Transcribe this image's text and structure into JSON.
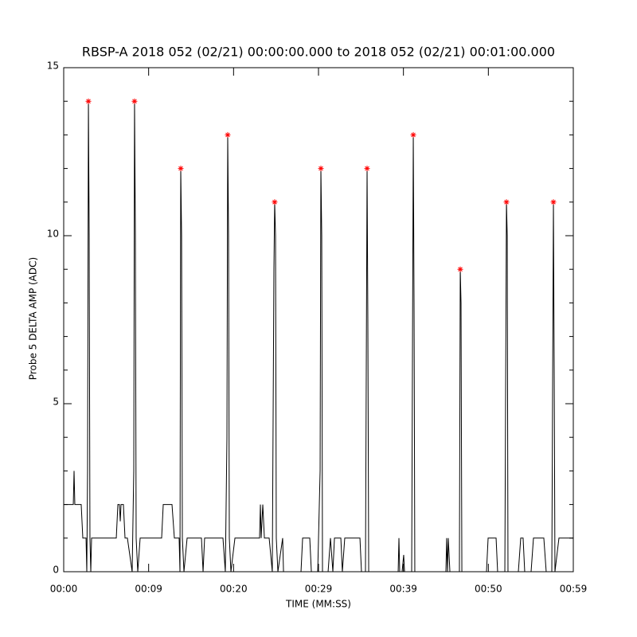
{
  "chart_data": {
    "type": "line",
    "title": "RBSP-A 2018 052 (02/21) 00:00:00.000 to 2018 052 (02/21) 00:01:00.000",
    "x_label": "TIME (MM:SS)",
    "y_label": "Probe 5 DELTA AMP (ADC)",
    "xlim": [
      0,
      60
    ],
    "ylim": [
      0,
      15
    ],
    "xticks": [
      {
        "value": 0,
        "label": "00:00"
      },
      {
        "value": 10,
        "label": "00:09"
      },
      {
        "value": 20,
        "label": "00:20"
      },
      {
        "value": 30,
        "label": "00:29"
      },
      {
        "value": 40,
        "label": "00:39"
      },
      {
        "value": 50,
        "label": "00:50"
      },
      {
        "value": 60,
        "label": "00:59"
      }
    ],
    "yticks": [
      0,
      5,
      10,
      15
    ],
    "yminorticks": [
      1,
      2,
      3,
      4,
      6,
      7,
      8,
      9,
      11,
      12,
      13,
      14
    ],
    "series": [
      {
        "color": "#000000",
        "x": [
          0,
          1.13,
          1.22,
          1.31,
          2.06,
          2.25,
          2.63,
          2.72,
          2.81,
          2.91,
          3.0,
          3.09,
          3.19,
          3.28,
          6.19,
          6.38,
          6.56,
          6.66,
          6.75,
          7.03,
          7.22,
          7.5,
          8.06,
          8.25,
          8.34,
          8.44,
          8.53,
          8.72,
          9.0,
          11.53,
          11.72,
          12.75,
          13.03,
          13.59,
          13.69,
          13.78,
          13.88,
          13.97,
          14.16,
          14.53,
          16.22,
          16.41,
          16.59,
          18.75,
          19.03,
          19.22,
          19.31,
          19.41,
          19.5,
          19.69,
          20.16,
          23.06,
          23.16,
          23.25,
          23.44,
          23.63,
          24.19,
          24.56,
          24.75,
          24.84,
          24.94,
          25.03,
          25.22,
          25.78,
          25.88,
          27.94,
          28.13,
          28.97,
          29.16,
          29.91,
          30.19,
          30.28,
          30.38,
          30.47,
          31.13,
          31.41,
          31.69,
          31.88,
          32.63,
          32.81,
          33.09,
          34.88,
          35.06,
          35.53,
          35.72,
          35.81,
          35.91,
          39.38,
          39.47,
          39.56,
          39.84,
          40.03,
          40.13,
          40.97,
          41.16,
          41.25,
          41.34,
          45.0,
          45.09,
          45.19,
          45.28,
          45.47,
          46.59,
          46.69,
          46.78,
          46.88,
          49.78,
          49.97,
          50.91,
          51.09,
          51.94,
          52.13,
          52.22,
          52.31,
          53.53,
          53.81,
          54.09,
          54.28,
          55.03,
          55.31,
          56.53,
          56.81,
          57.47,
          57.66,
          57.75,
          57.84,
          58.31,
          60
        ],
        "values": [
          2,
          2,
          3,
          2,
          2,
          1,
          1,
          0,
          3,
          14,
          10,
          1,
          0,
          1,
          1,
          2,
          2,
          1.5,
          2,
          2,
          1,
          1,
          0,
          3,
          14,
          10,
          1,
          0,
          1,
          1,
          2,
          2,
          1,
          1,
          0,
          12,
          10,
          1,
          0,
          1,
          1,
          0,
          1,
          1,
          0,
          4,
          13,
          10,
          1,
          0,
          1,
          1,
          2,
          1,
          2,
          1,
          1,
          0,
          9,
          11,
          10,
          1,
          0,
          1,
          0,
          0,
          1,
          1,
          0,
          0,
          3,
          12,
          10,
          0,
          0,
          1,
          0,
          1,
          1,
          0,
          1,
          1,
          0,
          0,
          12,
          7.5,
          0,
          0,
          1,
          0,
          0,
          0.5,
          0,
          0,
          13,
          8,
          0,
          0,
          1,
          0,
          1,
          0,
          0,
          9,
          8,
          0,
          0,
          1,
          1,
          0,
          0,
          11,
          10,
          0,
          0,
          1,
          1,
          0,
          0,
          1,
          1,
          0,
          0,
          11,
          6,
          0,
          1,
          1
        ]
      },
      {
        "color": "#ff0000",
        "marker": "asterisk",
        "x": [
          2.91,
          8.34,
          13.78,
          19.31,
          24.84,
          30.28,
          35.72,
          41.16,
          46.69,
          52.13,
          57.66
        ],
        "values": [
          14,
          14,
          12,
          13,
          11,
          12,
          12,
          13,
          9,
          11,
          11
        ]
      }
    ]
  }
}
